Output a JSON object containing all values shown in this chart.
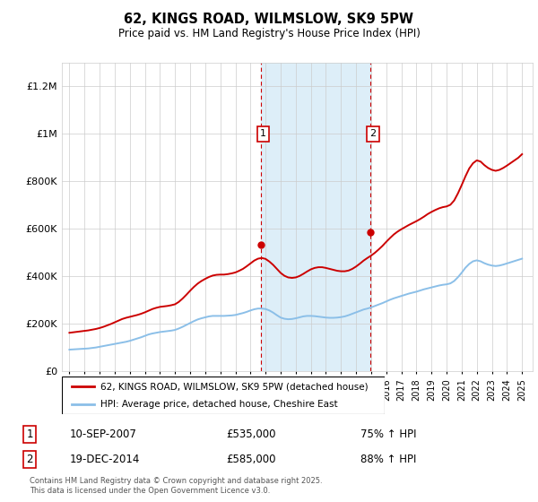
{
  "title": "62, KINGS ROAD, WILMSLOW, SK9 5PW",
  "subtitle": "Price paid vs. HM Land Registry's House Price Index (HPI)",
  "ylim": [
    0,
    1300000
  ],
  "yticks": [
    0,
    200000,
    400000,
    600000,
    800000,
    1000000,
    1200000
  ],
  "ytick_labels": [
    "£0",
    "£200K",
    "£400K",
    "£600K",
    "£800K",
    "£1M",
    "£1.2M"
  ],
  "xlim_start": 1994.5,
  "xlim_end": 2025.7,
  "transaction1_date": 2007.7,
  "transaction1_price": 535000,
  "transaction2_date": 2014.96,
  "transaction2_price": 585000,
  "shaded_start": 2007.7,
  "shaded_end": 2014.96,
  "line1_color": "#cc0000",
  "line2_color": "#8bbfe8",
  "legend1_label": "62, KINGS ROAD, WILMSLOW, SK9 5PW (detached house)",
  "legend2_label": "HPI: Average price, detached house, Cheshire East",
  "transaction1_text": "10-SEP-2007",
  "transaction1_price_str": "£535,000",
  "transaction1_hpi_str": "75% ↑ HPI",
  "transaction2_text": "19-DEC-2014",
  "transaction2_price_str": "£585,000",
  "transaction2_hpi_str": "88% ↑ HPI",
  "footnote": "Contains HM Land Registry data © Crown copyright and database right 2025.\nThis data is licensed under the Open Government Licence v3.0.",
  "hpi_x": [
    1995.0,
    1995.25,
    1995.5,
    1995.75,
    1996.0,
    1996.25,
    1996.5,
    1996.75,
    1997.0,
    1997.25,
    1997.5,
    1997.75,
    1998.0,
    1998.25,
    1998.5,
    1998.75,
    1999.0,
    1999.25,
    1999.5,
    1999.75,
    2000.0,
    2000.25,
    2000.5,
    2000.75,
    2001.0,
    2001.25,
    2001.5,
    2001.75,
    2002.0,
    2002.25,
    2002.5,
    2002.75,
    2003.0,
    2003.25,
    2003.5,
    2003.75,
    2004.0,
    2004.25,
    2004.5,
    2004.75,
    2005.0,
    2005.25,
    2005.5,
    2005.75,
    2006.0,
    2006.25,
    2006.5,
    2006.75,
    2007.0,
    2007.25,
    2007.5,
    2007.75,
    2008.0,
    2008.25,
    2008.5,
    2008.75,
    2009.0,
    2009.25,
    2009.5,
    2009.75,
    2010.0,
    2010.25,
    2010.5,
    2010.75,
    2011.0,
    2011.25,
    2011.5,
    2011.75,
    2012.0,
    2012.25,
    2012.5,
    2012.75,
    2013.0,
    2013.25,
    2013.5,
    2013.75,
    2014.0,
    2014.25,
    2014.5,
    2014.75,
    2015.0,
    2015.25,
    2015.5,
    2015.75,
    2016.0,
    2016.25,
    2016.5,
    2016.75,
    2017.0,
    2017.25,
    2017.5,
    2017.75,
    2018.0,
    2018.25,
    2018.5,
    2018.75,
    2019.0,
    2019.25,
    2019.5,
    2019.75,
    2020.0,
    2020.25,
    2020.5,
    2020.75,
    2021.0,
    2021.25,
    2021.5,
    2021.75,
    2022.0,
    2022.25,
    2022.5,
    2022.75,
    2023.0,
    2023.25,
    2023.5,
    2023.75,
    2024.0,
    2024.25,
    2024.5,
    2024.75,
    2025.0
  ],
  "hpi_y": [
    92000,
    93000,
    94000,
    95000,
    96000,
    97000,
    99000,
    101000,
    104000,
    107000,
    110000,
    113000,
    116000,
    119000,
    122000,
    125000,
    129000,
    134000,
    139000,
    144000,
    150000,
    156000,
    160000,
    163000,
    166000,
    168000,
    170000,
    172000,
    175000,
    181000,
    188000,
    196000,
    204000,
    212000,
    219000,
    224000,
    228000,
    232000,
    234000,
    234000,
    234000,
    234000,
    235000,
    236000,
    238000,
    242000,
    246000,
    251000,
    257000,
    262000,
    265000,
    265000,
    263000,
    257000,
    248000,
    237000,
    227000,
    222000,
    220000,
    221000,
    224000,
    228000,
    232000,
    234000,
    234000,
    233000,
    231000,
    229000,
    227000,
    226000,
    226000,
    227000,
    229000,
    232000,
    237000,
    243000,
    249000,
    255000,
    261000,
    265000,
    270000,
    276000,
    282000,
    288000,
    295000,
    302000,
    308000,
    313000,
    318000,
    323000,
    328000,
    332000,
    336000,
    341000,
    346000,
    350000,
    354000,
    358000,
    362000,
    365000,
    367000,
    371000,
    381000,
    397000,
    416000,
    437000,
    453000,
    464000,
    468000,
    464000,
    456000,
    450000,
    446000,
    444000,
    446000,
    450000,
    455000,
    460000,
    465000,
    470000,
    475000
  ],
  "prop_x": [
    1995.0,
    1995.25,
    1995.5,
    1995.75,
    1996.0,
    1996.25,
    1996.5,
    1996.75,
    1997.0,
    1997.25,
    1997.5,
    1997.75,
    1998.0,
    1998.25,
    1998.5,
    1998.75,
    1999.0,
    1999.25,
    1999.5,
    1999.75,
    2000.0,
    2000.25,
    2000.5,
    2000.75,
    2001.0,
    2001.25,
    2001.5,
    2001.75,
    2002.0,
    2002.25,
    2002.5,
    2002.75,
    2003.0,
    2003.25,
    2003.5,
    2003.75,
    2004.0,
    2004.25,
    2004.5,
    2004.75,
    2005.0,
    2005.25,
    2005.5,
    2005.75,
    2006.0,
    2006.25,
    2006.5,
    2006.75,
    2007.0,
    2007.25,
    2007.5,
    2007.75,
    2008.0,
    2008.25,
    2008.5,
    2008.75,
    2009.0,
    2009.25,
    2009.5,
    2009.75,
    2010.0,
    2010.25,
    2010.5,
    2010.75,
    2011.0,
    2011.25,
    2011.5,
    2011.75,
    2012.0,
    2012.25,
    2012.5,
    2012.75,
    2013.0,
    2013.25,
    2013.5,
    2013.75,
    2014.0,
    2014.25,
    2014.5,
    2014.75,
    2015.0,
    2015.25,
    2015.5,
    2015.75,
    2016.0,
    2016.25,
    2016.5,
    2016.75,
    2017.0,
    2017.25,
    2017.5,
    2017.75,
    2018.0,
    2018.25,
    2018.5,
    2018.75,
    2019.0,
    2019.25,
    2019.5,
    2019.75,
    2020.0,
    2020.25,
    2020.5,
    2020.75,
    2021.0,
    2021.25,
    2021.5,
    2021.75,
    2022.0,
    2022.25,
    2022.5,
    2022.75,
    2023.0,
    2023.25,
    2023.5,
    2023.75,
    2024.0,
    2024.25,
    2024.5,
    2024.75,
    2025.0
  ],
  "prop_y": [
    163000,
    165000,
    167000,
    169000,
    171000,
    173000,
    176000,
    179000,
    183000,
    188000,
    194000,
    200000,
    207000,
    214000,
    221000,
    226000,
    230000,
    234000,
    238000,
    243000,
    249000,
    256000,
    263000,
    268000,
    272000,
    274000,
    276000,
    279000,
    283000,
    293000,
    307000,
    323000,
    340000,
    356000,
    370000,
    381000,
    390000,
    398000,
    404000,
    407000,
    408000,
    408000,
    410000,
    413000,
    417000,
    424000,
    432000,
    443000,
    455000,
    467000,
    475000,
    478000,
    474000,
    463000,
    449000,
    432000,
    415000,
    403000,
    396000,
    394000,
    396000,
    402000,
    411000,
    421000,
    430000,
    436000,
    439000,
    439000,
    436000,
    432000,
    428000,
    424000,
    422000,
    422000,
    425000,
    432000,
    442000,
    454000,
    467000,
    478000,
    488000,
    500000,
    514000,
    529000,
    546000,
    562000,
    577000,
    589000,
    599000,
    608000,
    617000,
    625000,
    633000,
    642000,
    652000,
    663000,
    672000,
    680000,
    687000,
    692000,
    695000,
    702000,
    720000,
    750000,
    785000,
    822000,
    855000,
    877000,
    889000,
    884000,
    869000,
    857000,
    849000,
    845000,
    849000,
    857000,
    867000,
    878000,
    889000,
    900000,
    915000
  ]
}
